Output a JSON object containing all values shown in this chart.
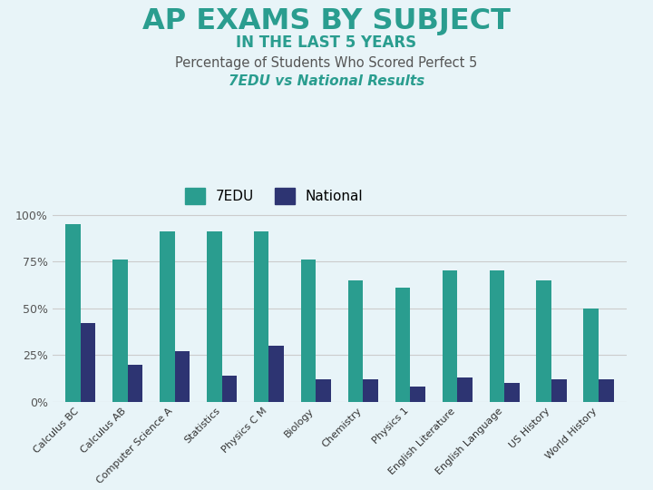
{
  "title_line1": "AP EXAMS BY SUBJECT",
  "title_line2": "IN THE LAST 5 YEARS",
  "subtitle_line1": "Percentage of Students Who Scored Perfect 5",
  "subtitle_line2": "7EDU vs National Results",
  "categories": [
    "Calculus BC",
    "Calculus AB",
    "Computer Science A",
    "Statistics",
    "Physics C M",
    "Biology",
    "Chemistry",
    "Physics 1",
    "English Literature",
    "English Language",
    "US History",
    "World History"
  ],
  "sedu_values": [
    95,
    76,
    91,
    91,
    91,
    76,
    65,
    61,
    70,
    70,
    65,
    50
  ],
  "national_values": [
    42,
    20,
    27,
    14,
    30,
    12,
    12,
    8,
    13,
    10,
    12,
    12
  ],
  "sedu_color": "#2a9d8f",
  "national_color": "#2d3472",
  "background_color": "#e8f4f8",
  "title_color": "#2a9d8f",
  "subtitle2_color": "#2a9d8f",
  "subtitle1_color": "#555555",
  "ytick_labels": [
    "0%",
    "25%",
    "50%",
    "75%",
    "100%"
  ],
  "ytick_values": [
    0,
    25,
    50,
    75,
    100
  ],
  "legend_7edu": "7EDU",
  "legend_national": "National"
}
